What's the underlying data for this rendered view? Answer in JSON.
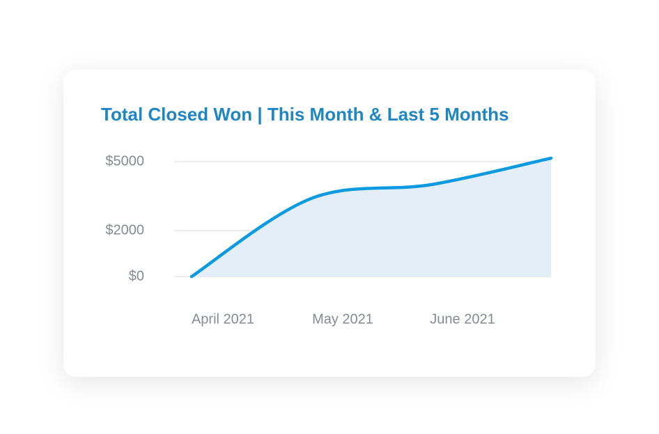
{
  "chart_data": {
    "type": "line",
    "title": "Total Closed Won | This Month & Last 5 Months",
    "categories": [
      "April 2021",
      "May 2021",
      "June 2021",
      null
    ],
    "series": [
      {
        "color": "#0d9ae0",
        "values": [
          0,
          3400,
          4000,
          5150
        ]
      }
    ],
    "area_color": "#e4eef9",
    "ylim": [
      0,
      5000
    ],
    "yticks": [
      {
        "value": 0,
        "label": "$0"
      },
      {
        "value": 2000,
        "label": "$2000"
      },
      {
        "value": 5000,
        "label": "$5000"
      }
    ],
    "grid": true
  }
}
